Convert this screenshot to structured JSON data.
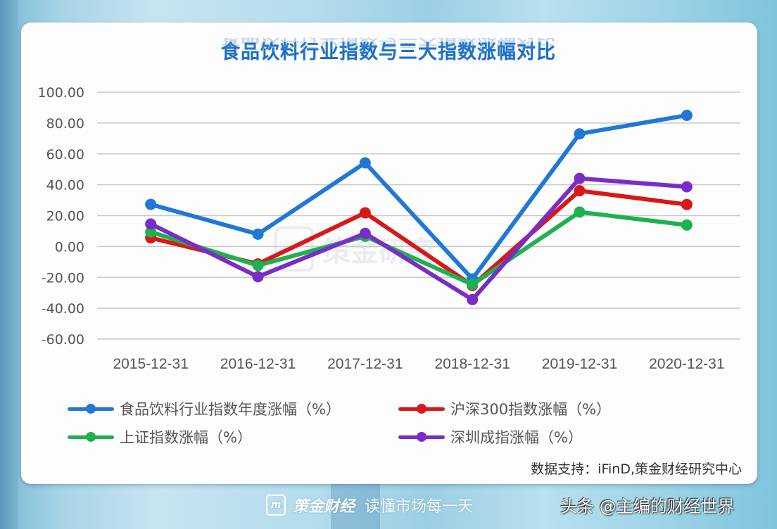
{
  "chart_data": {
    "type": "line",
    "title": "食品饮料行业指数与三大指数涨幅对比",
    "xlabel": "",
    "ylabel": "",
    "ylim": [
      -60,
      100
    ],
    "yticks": [
      "100.00",
      "80.00",
      "60.00",
      "40.00",
      "20.00",
      "0.00",
      "-20.00",
      "-40.00",
      "-60.00"
    ],
    "grid": true,
    "legend_position": "bottom",
    "categories": [
      "2015-12-31",
      "2016-12-31",
      "2017-12-31",
      "2018-12-31",
      "2019-12-31",
      "2020-12-31"
    ],
    "series": [
      {
        "name": "食品饮料行业指数年度涨幅（%）",
        "color": "#1f78d8",
        "values": [
          27.3,
          8.0,
          54.2,
          -21.0,
          73.0,
          85.0
        ]
      },
      {
        "name": "沪深300指数涨幅（%）",
        "color": "#d81818",
        "values": [
          5.6,
          -11.3,
          21.8,
          -25.3,
          36.1,
          27.2
        ]
      },
      {
        "name": "上证指数涨幅（%）",
        "color": "#1fb050",
        "values": [
          9.4,
          -12.3,
          6.6,
          -24.6,
          22.3,
          13.9
        ]
      },
      {
        "name": "深圳成指涨幅（%）",
        "color": "#7a2cc8",
        "values": [
          14.6,
          -19.6,
          8.5,
          -34.4,
          44.1,
          38.7
        ]
      }
    ]
  },
  "source": "数据支持：iFinD,策金财经研究中心",
  "watermark": "策金研究",
  "footer": {
    "brand_logo": "m",
    "brand_name": "策金财经",
    "slogan": "读懂市场每一天",
    "credit": "头条 @主编的财经世界"
  }
}
